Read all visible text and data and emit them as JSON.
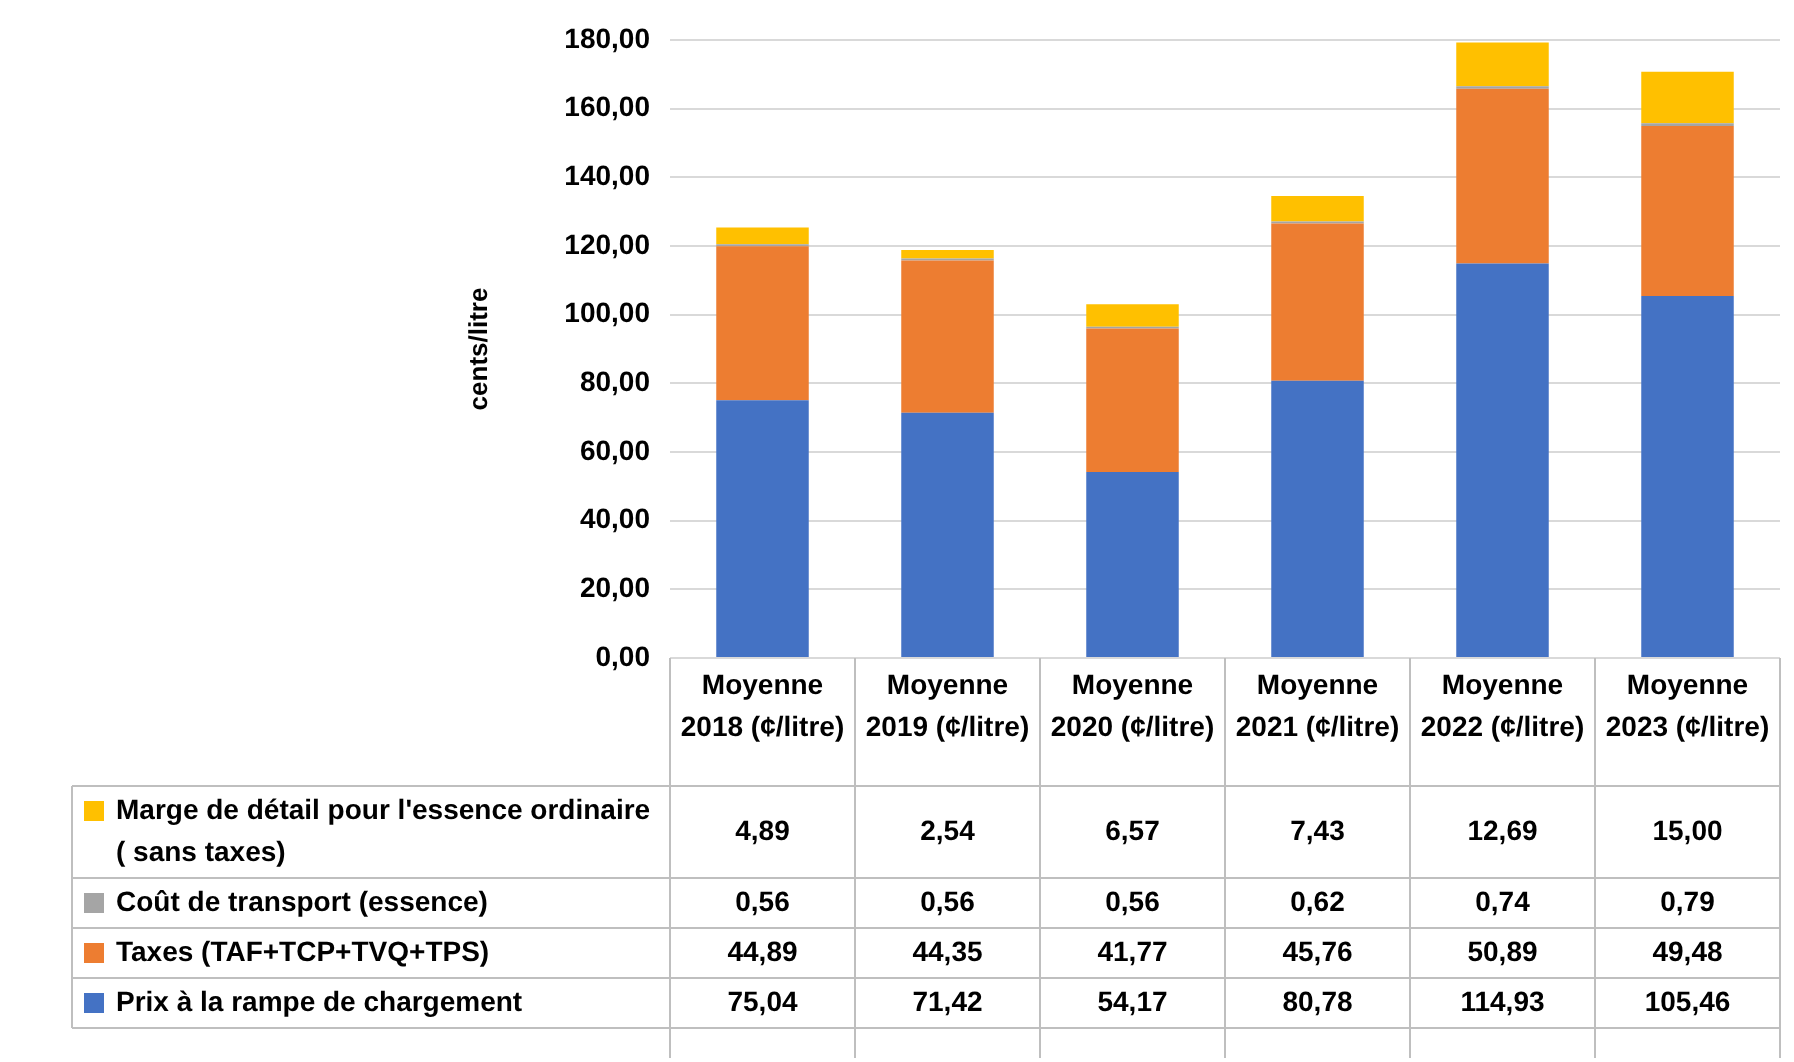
{
  "chart_data": {
    "type": "bar",
    "stacked": true,
    "ylabel": "cents/litre",
    "categories": [
      "Moyenne 2018 (¢/litre)",
      "Moyenne 2019 (¢/litre)",
      "Moyenne 2020 (¢/litre)",
      "Moyenne 2021 (¢/litre)",
      "Moyenne 2022 (¢/litre)",
      "Moyenne 2023 (¢/litre)"
    ],
    "series": [
      {
        "name": "Prix à la rampe de chargement",
        "color": "#4472c4",
        "values": [
          75.04,
          71.42,
          54.17,
          80.78,
          114.93,
          105.46
        ],
        "value_labels": [
          "75,04",
          "71,42",
          "54,17",
          "80,78",
          "114,93",
          "105,46"
        ]
      },
      {
        "name": "Taxes (TAF+TCP+TVQ+TPS)",
        "color": "#ed7d31",
        "values": [
          44.89,
          44.35,
          41.77,
          45.76,
          50.89,
          49.48
        ],
        "value_labels": [
          "44,89",
          "44,35",
          "41,77",
          "45,76",
          "50,89",
          "49,48"
        ]
      },
      {
        "name": "Coût de transport (essence)",
        "color": "#a5a5a5",
        "values": [
          0.56,
          0.56,
          0.56,
          0.62,
          0.74,
          0.79
        ],
        "value_labels": [
          "0,56",
          "0,56",
          "0,56",
          "0,62",
          "0,74",
          "0,79"
        ]
      },
      {
        "name": "Marge de détail pour l'essence ordinaire ( sans taxes)",
        "color": "#ffc000",
        "values": [
          4.89,
          2.54,
          6.57,
          7.43,
          12.69,
          15.0
        ],
        "value_labels": [
          "4,89",
          "2,54",
          "6,57",
          "7,43",
          "12,69",
          "15,00"
        ]
      }
    ],
    "ylim": [
      0,
      180
    ],
    "yticks": [
      {
        "value": 0,
        "label": "0,00"
      },
      {
        "value": 20,
        "label": "20,00"
      },
      {
        "value": 40,
        "label": "40,00"
      },
      {
        "value": 60,
        "label": "60,00"
      },
      {
        "value": 80,
        "label": "80,00"
      },
      {
        "value": 100,
        "label": "100,00"
      },
      {
        "value": 120,
        "label": "120,00"
      },
      {
        "value": 140,
        "label": "140,00"
      },
      {
        "value": 160,
        "label": "160,00"
      },
      {
        "value": 180,
        "label": "180,00"
      }
    ],
    "grid": "y",
    "legend": "bottom"
  }
}
